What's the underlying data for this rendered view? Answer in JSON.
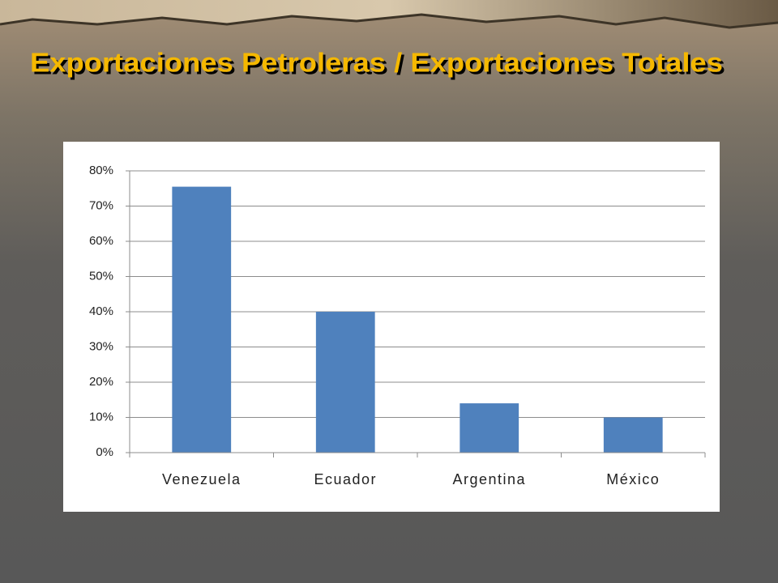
{
  "chart_data": {
    "type": "bar",
    "title": "Exportaciones Petroleras / Exportaciones Totales",
    "categories": [
      "Venezuela",
      "Ecuador",
      "Argentina",
      "México"
    ],
    "values": [
      75.5,
      40,
      14,
      10
    ],
    "color": "#4f81bd",
    "ylim": [
      0,
      80
    ],
    "yticks": [
      {
        "value": 0,
        "label": "0%"
      },
      {
        "value": 10,
        "label": "10%"
      },
      {
        "value": 20,
        "label": "20%"
      },
      {
        "value": 30,
        "label": "30%"
      },
      {
        "value": 40,
        "label": "40%"
      },
      {
        "value": 50,
        "label": "50%"
      },
      {
        "value": 60,
        "label": "60%"
      },
      {
        "value": 70,
        "label": "70%"
      },
      {
        "value": 80,
        "label": "80%"
      }
    ],
    "grid": true
  }
}
